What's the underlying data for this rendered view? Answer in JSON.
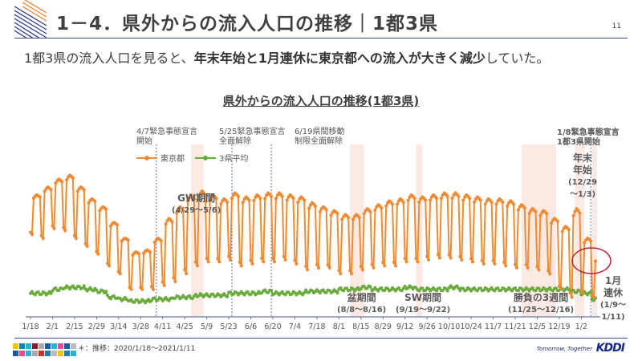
{
  "header": {
    "title": "1－4．県外からの流入人口の推移｜1都3県",
    "page_number": "11"
  },
  "subtitle": {
    "prefix": "1都3県の流入人口を見ると、",
    "bold": "年末年始と1月連休に東京都への流入が大きく減少",
    "suffix": "していた。"
  },
  "colors": {
    "tokyo": "#f08a33",
    "avg3": "#6bab3e",
    "highlight_band": "#fde9e4",
    "circle": "#c0182e",
    "axis": "#4a5a8a"
  },
  "chart_data": {
    "type": "line",
    "title": "県外からの流入人口の推移(1都3県)",
    "xlabel": "",
    "ylabel": "",
    "x_start": "2020/1/18",
    "x_end": "2021/1/11",
    "x_tick_labels": [
      "1/18",
      "2/1",
      "2/15",
      "2/29",
      "3/14",
      "3/28",
      "4/11",
      "4/25",
      "5/9",
      "5/23",
      "6/6",
      "6/20",
      "7/4",
      "7/18",
      "8/1",
      "8/15",
      "8/29",
      "9/12",
      "9/26",
      "10/10",
      "10/24",
      "11/7",
      "11/21",
      "12/5",
      "12/19",
      "1/2"
    ],
    "y_axis_visible": false,
    "ylim": [
      0,
      100
    ],
    "legend_position": "top-left",
    "series": [
      {
        "name": "東京都",
        "color_key": "tokyo",
        "weekly_peak": [
          62,
          66,
          70,
          72,
          66,
          60,
          56,
          48,
          40,
          33,
          34,
          40,
          50,
          56,
          62,
          64,
          62,
          60,
          63,
          61,
          62,
          63,
          63,
          62,
          61,
          58,
          56,
          54,
          52,
          52,
          55,
          57,
          59,
          60,
          62,
          61,
          62,
          63,
          63,
          62,
          61,
          60,
          60,
          59,
          57,
          55,
          54,
          50,
          46,
          55,
          40,
          30
        ],
        "weekly_trough": [
          42,
          40,
          45,
          44,
          40,
          36,
          32,
          26,
          22,
          14,
          14,
          14,
          16,
          18,
          22,
          26,
          28,
          28,
          29,
          26,
          27,
          28,
          28,
          29,
          27,
          24,
          25,
          25,
          22,
          22,
          24,
          25,
          26,
          26,
          28,
          28,
          29,
          30,
          30,
          29,
          28,
          27,
          27,
          26,
          25,
          25,
          24,
          22,
          14,
          10,
          12,
          10
        ],
        "note": "Daily values with weekday peaks / weekend troughs; relative scale, no y-axis shown"
      },
      {
        "name": "3県平均",
        "color_key": "avg3",
        "weekly_level": [
          12,
          12,
          14,
          15,
          15,
          14,
          13,
          10,
          9,
          8,
          8,
          9,
          9,
          10,
          10,
          11,
          11,
          11,
          12,
          12,
          12,
          13,
          12,
          12,
          12,
          13,
          13,
          13,
          14,
          14,
          15,
          14,
          14,
          14,
          15,
          14,
          14,
          14,
          15,
          14,
          14,
          14,
          14,
          14,
          14,
          14,
          14,
          14,
          14,
          13,
          12,
          9
        ],
        "note": "Relative scale"
      }
    ],
    "event_lines": [
      {
        "date": "4/7",
        "label_line1": "4/7緊急事態宣言",
        "label_line2": "開始"
      },
      {
        "date": "5/25",
        "label_line1": "5/25緊急事態宣言",
        "label_line2": "全面解除"
      },
      {
        "date": "6/19",
        "label_line1": "6/19県間移動",
        "label_line2": "制限全面解除"
      },
      {
        "date": "1/8",
        "label_line1": "1/8緊急事態宣言",
        "label_line2": "1都3県開始"
      }
    ],
    "highlight_periods": [
      {
        "name": "GW期間",
        "range": "(4/29～5/6)"
      },
      {
        "name": "盆期間",
        "range": "(8/8～8/16)"
      },
      {
        "name": "SW期間",
        "range": "(9/19～9/22)"
      },
      {
        "name": "勝負の3週間",
        "range": "(11/25～12/16)"
      },
      {
        "name": "年末年始",
        "range": "(12/29～1/3)"
      },
      {
        "name": "1月連休",
        "range": "(1/9～1/11)"
      }
    ]
  },
  "annotations": {
    "gw": {
      "title": "GW期間",
      "range": "(4/29～5/6)"
    },
    "bon": {
      "title": "盆期間",
      "range": "(8/8～8/16)"
    },
    "sw": {
      "title": "SW期間",
      "range": "(9/19～9/22)"
    },
    "shobu": {
      "title": "勝負の3週間",
      "range": "(11/25～12/16)"
    },
    "nenmatsu": {
      "line1": "年末",
      "line2": "年始",
      "range1": "(12/29",
      "range2": "～1/3)"
    },
    "renkyu": {
      "line1": "1月",
      "line2": "連休",
      "range1": "(1/9～",
      "range2": "1/11)"
    },
    "ev1": {
      "l1": "4/7緊急事態宣言",
      "l2": "開始"
    },
    "ev2": {
      "l1": "5/25緊急事態宣言",
      "l2": "全面解除"
    },
    "ev3": {
      "l1": "6/19県間移動",
      "l2": "制限全面解除"
    },
    "ev4": {
      "l1": "1/8緊急事態宣言",
      "l2": "1都3県開始"
    }
  },
  "legend": {
    "tokyo": "東京都",
    "avg3": "3県平均"
  },
  "footer": {
    "footnote": "＊：推移：2020/1/18～2021/1/11",
    "tagline": "Tomorrow, Together",
    "brand": "KDDI"
  }
}
